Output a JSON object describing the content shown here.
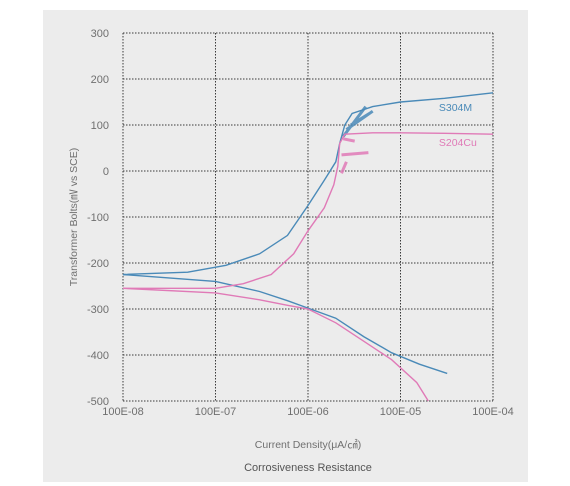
{
  "chart_data": {
    "type": "line",
    "title": "",
    "caption": "Corrosiveness Resistance",
    "xlabel": "Current Density(μA/㎠)",
    "ylabel": "Transformer Bolts(㎷ vs SCE)",
    "x_scale": "log",
    "xlim": [
      1e-08,
      0.0001
    ],
    "ylim": [
      -500,
      300
    ],
    "xticks": [
      {
        "value": 1e-08,
        "label": "100E-08"
      },
      {
        "value": 1e-07,
        "label": "100E-07"
      },
      {
        "value": 1e-06,
        "label": "100E-06"
      },
      {
        "value": 1e-05,
        "label": "100E-05"
      },
      {
        "value": 0.0001,
        "label": "100E-04"
      }
    ],
    "yticks": [
      {
        "value": 300,
        "label": "300"
      },
      {
        "value": 200,
        "label": "200"
      },
      {
        "value": 100,
        "label": "100"
      },
      {
        "value": 0,
        "label": "0"
      },
      {
        "value": -100,
        "label": "-100"
      },
      {
        "value": -200,
        "label": "-200"
      },
      {
        "value": -300,
        "label": "-300"
      },
      {
        "value": -400,
        "label": "-400"
      },
      {
        "value": -500,
        "label": "-500"
      }
    ],
    "grid": "dotted",
    "series": [
      {
        "name": "S304M",
        "color": "#4a8ab8",
        "anodic": [
          [
            1e-08,
            -225
          ],
          [
            5e-08,
            -220
          ],
          [
            1.3e-07,
            -205
          ],
          [
            3e-07,
            -180
          ],
          [
            6e-07,
            -140
          ],
          [
            1e-06,
            -75
          ],
          [
            1.5e-06,
            -20
          ],
          [
            2e-06,
            20
          ],
          [
            2.2e-06,
            60
          ],
          [
            2.5e-06,
            100
          ],
          [
            3e-06,
            125
          ],
          [
            5e-06,
            140
          ],
          [
            1e-05,
            150
          ],
          [
            3e-05,
            158
          ],
          [
            0.0001,
            170
          ]
        ],
        "cathodic": [
          [
            1e-08,
            -225
          ],
          [
            1e-07,
            -240
          ],
          [
            3e-07,
            -262
          ],
          [
            6e-07,
            -282
          ],
          [
            1e-06,
            -298
          ],
          [
            2e-06,
            -320
          ],
          [
            4e-06,
            -360
          ],
          [
            8e-06,
            -395
          ],
          [
            1.6e-05,
            -420
          ],
          [
            3.2e-05,
            -440
          ]
        ],
        "noise": [
          [
            2.4e-06,
            75
          ],
          [
            4.2e-06,
            140
          ],
          [
            2.6e-06,
            90
          ],
          [
            5e-06,
            130
          ],
          [
            2.9e-06,
            100
          ],
          [
            4.6e-06,
            125
          ]
        ]
      },
      {
        "name": "S204Cu",
        "color": "#e07ab7",
        "anodic": [
          [
            1e-08,
            -255
          ],
          [
            1e-07,
            -255
          ],
          [
            2e-07,
            -245
          ],
          [
            4e-07,
            -225
          ],
          [
            7e-07,
            -180
          ],
          [
            1e-06,
            -130
          ],
          [
            1.5e-06,
            -80
          ],
          [
            1.9e-06,
            -30
          ],
          [
            2.1e-06,
            10
          ],
          [
            2.2e-06,
            60
          ],
          [
            2.5e-06,
            80
          ],
          [
            5e-06,
            83
          ],
          [
            1e-05,
            83
          ],
          [
            3e-05,
            82
          ],
          [
            0.0001,
            80
          ]
        ],
        "cathodic": [
          [
            1e-08,
            -255
          ],
          [
            1e-07,
            -265
          ],
          [
            3e-07,
            -280
          ],
          [
            6e-07,
            -292
          ],
          [
            1e-06,
            -300
          ],
          [
            2e-06,
            -330
          ],
          [
            4e-06,
            -370
          ],
          [
            8e-06,
            -410
          ],
          [
            1.5e-05,
            -460
          ],
          [
            2e-05,
            -500
          ]
        ],
        "noise": [
          [
            2.3e-06,
            35
          ],
          [
            4.5e-06,
            40
          ],
          [
            2.4e-06,
            70
          ],
          [
            3.2e-06,
            65
          ],
          [
            2.3e-06,
            -5
          ],
          [
            2.6e-06,
            20
          ]
        ]
      }
    ]
  }
}
